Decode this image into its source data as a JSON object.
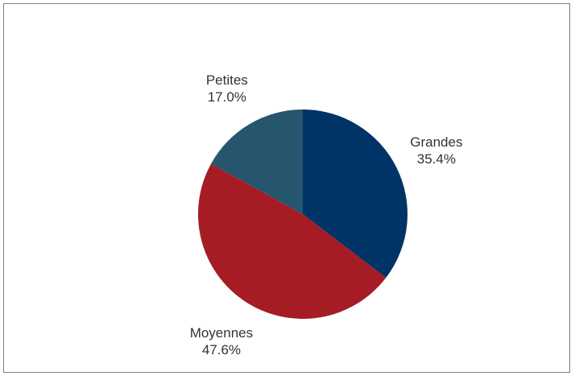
{
  "chart_data": {
    "type": "pie",
    "title": "",
    "slices": [
      {
        "label": "Grandes",
        "value": 35.4,
        "value_label": "35.4%",
        "color": "#003366"
      },
      {
        "label": "Moyennes",
        "value": 47.6,
        "value_label": "47.6%",
        "color": "#a51c24"
      },
      {
        "label": "Petites",
        "value": 17.0,
        "value_label": "17.0%",
        "color": "#25566e"
      }
    ],
    "start_angle": "12 o'clock",
    "direction": "clockwise",
    "legend": "none"
  }
}
